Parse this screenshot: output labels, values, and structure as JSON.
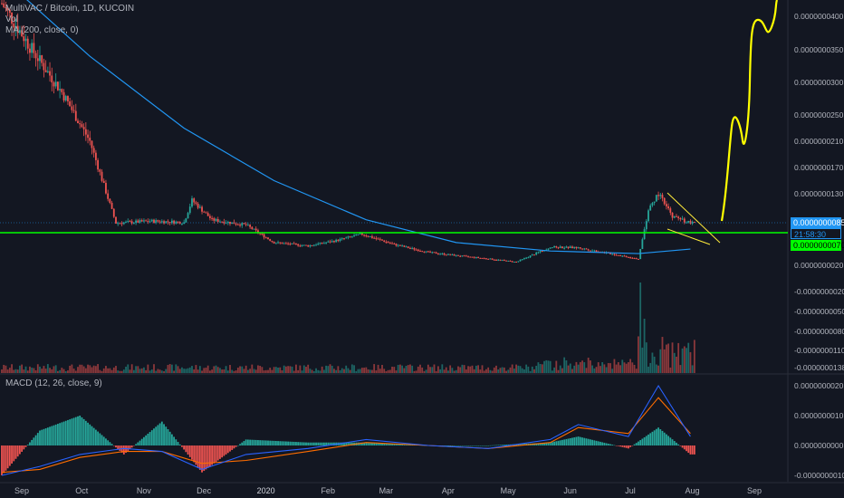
{
  "header": {
    "symbol_line": "MultiVAC / Bitcoin, 1D, KUCOIN",
    "vol_label": "Vol",
    "ma_label": "MA (200, close, 0)",
    "macd_label": "MACD (12, 26, close, 9)"
  },
  "colors": {
    "background": "#131722",
    "up": "#26a69a",
    "down": "#ef5350",
    "ma_line": "#2196f3",
    "support_line": "#00ff00",
    "projection": "#ffff00",
    "wedge": "#ffeb3b",
    "macd_line": "#2962ff",
    "signal_line": "#ff6d00",
    "hist_up": "#26a69a",
    "hist_down": "#ef5350"
  },
  "price_tags": {
    "last_price": "0.0000000085",
    "countdown": "21:58:30",
    "support_price": "0.0000000070"
  },
  "chart_data": [
    {
      "type": "candlestick",
      "title": "MultiVAC / Bitcoin, 1D, KUCOIN",
      "x_ticks": [
        "Sep",
        "Oct",
        "Nov",
        "Dec",
        "2020",
        "Feb",
        "Mar",
        "Apr",
        "May",
        "Jun",
        "Jul",
        "Aug",
        "Sep"
      ],
      "y_ticks": [
        "0.0000000400",
        "0.0000000350",
        "0.0000000300",
        "0.0000000250",
        "0.0000000210",
        "0.0000000170",
        "0.0000000130",
        "0.0000000020"
      ],
      "lower_ticks": [
        "-0.0000000020",
        "-0.0000000050",
        "-0.0000000080",
        "-0.0000000110",
        "-0.0000000138"
      ],
      "series": [
        {
          "name": "MultiVAC / Bitcoin",
          "x": [
            "2019-09-01",
            "2019-09-15",
            "2019-10-01",
            "2019-10-15",
            "2019-10-28",
            "2019-11-15",
            "2019-12-01",
            "2019-12-05",
            "2019-12-15",
            "2020-01-01",
            "2020-01-15",
            "2020-02-01",
            "2020-02-15",
            "2020-02-28",
            "2020-03-15",
            "2020-04-01",
            "2020-04-15",
            "2020-05-01",
            "2020-05-15",
            "2020-06-01",
            "2020-06-15",
            "2020-07-01",
            "2020-07-15",
            "2020-07-20",
            "2020-07-25",
            "2020-08-01",
            "2020-08-10"
          ],
          "values": [
            4.2e-08,
            3.55e-08,
            2.85e-08,
            2.1e-08,
            8.5e-09,
            8.8e-09,
            8.6e-09,
            1.2e-08,
            9e-09,
            8.2e-09,
            5.5e-09,
            5e-09,
            5.8e-09,
            6.8e-09,
            5.2e-09,
            4e-09,
            3.5e-09,
            3e-09,
            2.5e-09,
            4.8e-09,
            4.7e-09,
            3.8e-09,
            3e-09,
            1.05e-08,
            1.3e-08,
            9.5e-09,
            8.5e-09
          ]
        },
        {
          "name": "MA (200, close, 0)",
          "x": [
            "2019-09-01",
            "2019-10-15",
            "2019-12-01",
            "2020-01-15",
            "2020-03-01",
            "2020-04-15",
            "2020-06-01",
            "2020-07-15",
            "2020-08-10"
          ],
          "values": [
            4.6e-08,
            3.4e-08,
            2.3e-08,
            1.5e-08,
            9e-09,
            5.5e-09,
            4.2e-09,
            3.8e-09,
            4.5e-09
          ]
        }
      ],
      "annotations": [
        "horizontal support at 0.0000000070",
        "falling wedge",
        "projected rally"
      ]
    },
    {
      "type": "line",
      "title": "MACD (12, 26, close, 9)",
      "y_ticks": [
        "0.0000000020",
        "0.0000000010",
        "0.0000000000",
        "-0.0000000010"
      ],
      "x": [
        "2019-09-01",
        "2019-09-20",
        "2019-10-10",
        "2019-11-01",
        "2019-11-20",
        "2019-12-10",
        "2020-01-01",
        "2020-02-01",
        "2020-03-01",
        "2020-04-01",
        "2020-05-01",
        "2020-06-01",
        "2020-06-15",
        "2020-07-10",
        "2020-07-25",
        "2020-08-10"
      ],
      "series": [
        {
          "name": "MACD",
          "values": [
            -1e-09,
            -7e-10,
            -3e-10,
            -1e-10,
            -2e-10,
            -8e-10,
            -3e-10,
            -1e-10,
            2e-10,
            0.0,
            -1e-10,
            2e-10,
            7e-10,
            3e-10,
            2e-09,
            3e-10
          ]
        },
        {
          "name": "Signal",
          "values": [
            -9e-10,
            -8e-10,
            -4e-10,
            -2e-10,
            -2e-10,
            -6e-10,
            -5e-10,
            -2e-10,
            1e-10,
            0.0,
            -1e-10,
            1e-10,
            6e-10,
            4e-10,
            1.6e-09,
            4e-10
          ]
        },
        {
          "name": "Histogram",
          "values": [
            -1e-09,
            5e-10,
            1e-09,
            -3e-10,
            8e-10,
            -9e-10,
            2e-10,
            1e-10,
            1e-10,
            0.0,
            0.0,
            1e-10,
            3e-10,
            -1e-10,
            6e-10,
            -3e-10
          ]
        }
      ]
    }
  ]
}
